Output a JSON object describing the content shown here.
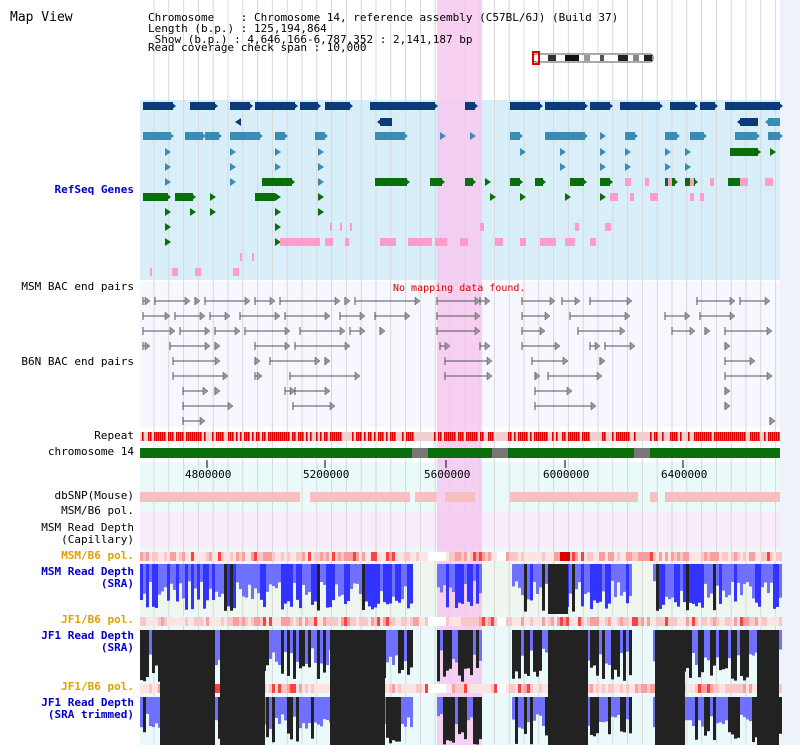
{
  "header": {
    "map_view": "Map View",
    "chromosome_line": "Chromosome    : Chromosome 14, reference assembly (C57BL/6J) (Build 37)",
    "length_line": "Length (b.p.) : 125,194,864",
    "show_line": " Show (b.p.) : 4,646,166-6,787,352 : 2,141,187 bp",
    "coverage_line": "Read coverage check span : 10,000"
  },
  "tracks": {
    "refseq": "RefSeq Genes",
    "msm_bac": "MSM BAC end pairs",
    "b6n_bac": "B6N BAC end pairs",
    "repeat": "Repeat",
    "chromosome": "chromosome 14",
    "dbsnp": "dbSNP(Mouse)",
    "msm_b6_pol_1": "MSM/B6 pol.",
    "msm_depth_cap_1": "MSM Read Depth",
    "msm_depth_cap_2": "(Capillary)",
    "msm_b6_pol_2": "MSM/B6 pol.",
    "msm_depth_sra_1": "MSM Read Depth",
    "msm_depth_sra_2": "(SRA)",
    "jf1_b6_pol_1": "JF1/B6 pol.",
    "jf1_depth_1": "JF1 Read Depth",
    "jf1_depth_2": "(SRA)",
    "jf1_b6_pol_2": "JF1/B6 pol.",
    "jf1_trim_1": "JF1 Read Depth",
    "jf1_trim_2": "(SRA trimmed)"
  },
  "messages": {
    "no_mapping": "No mapping data found."
  },
  "axis": {
    "ticks": [
      "4800000",
      "5200000",
      "5600000",
      "6000000",
      "6400000"
    ]
  },
  "colors": {
    "gene_navy": "#0c3c78",
    "gene_teal": "#3a8cb4",
    "gene_green": "#0a6e0a",
    "gene_pink": "#ff9ccc",
    "highlight": "#f6c8f0",
    "chromosome_green": "#0a6e0a",
    "repeat_red": "#dd0000",
    "depth_blue": "#3333ff",
    "depth_black": "#222222"
  }
}
